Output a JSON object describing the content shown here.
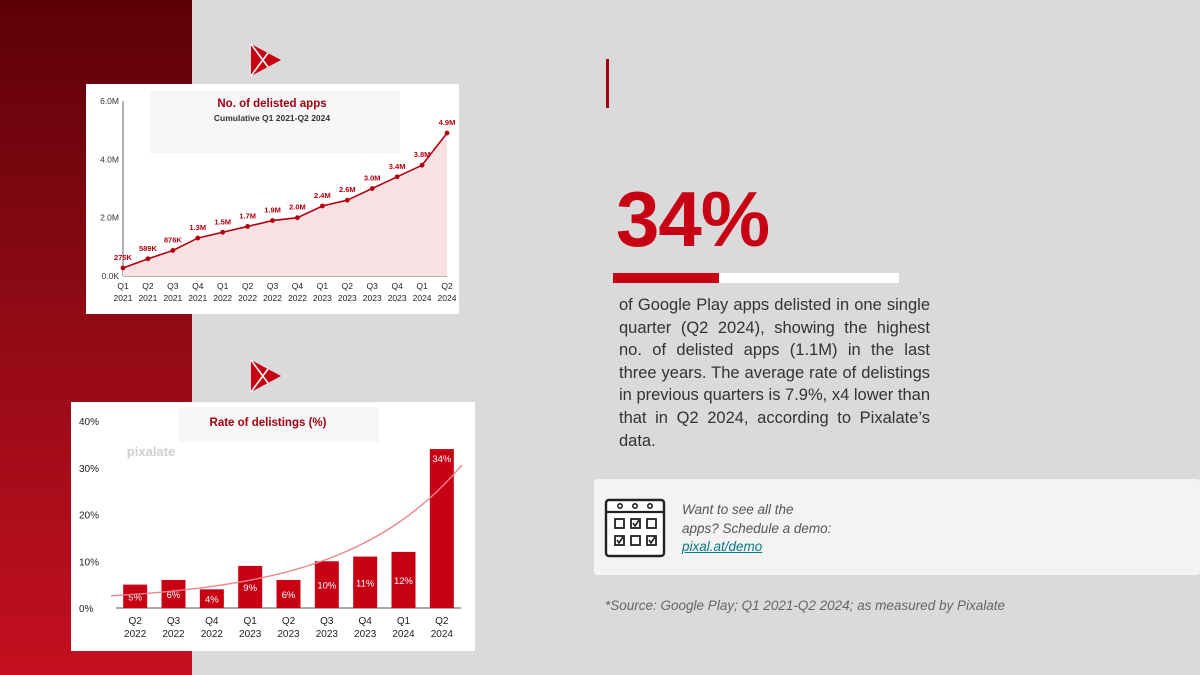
{
  "colors": {
    "brand_red": "#c80014",
    "dark_red": "#9e0010",
    "area_fill": "#f8e1e2",
    "trend": "#e9868c"
  },
  "logo_text": "pixalate",
  "cumulative_chart": {
    "type": "area",
    "title": "No. of delisted apps",
    "subtitle": "Cumulative Q1 2021-Q2 2024",
    "ylim": [
      0,
      6.0
    ],
    "y_ticks": [
      {
        "value": 0,
        "label": "0.0K"
      },
      {
        "value": 2,
        "label": "2.0M"
      },
      {
        "value": 4,
        "label": "4.0M"
      },
      {
        "value": 6,
        "label": "6.0M"
      }
    ],
    "x_quarters": [
      "Q1",
      "Q2",
      "Q3",
      "Q4",
      "Q1",
      "Q2",
      "Q3",
      "Q4",
      "Q1",
      "Q2",
      "Q3",
      "Q4",
      "Q1",
      "Q2"
    ],
    "x_years": [
      "2021",
      "2021",
      "2021",
      "2021",
      "2022",
      "2022",
      "2022",
      "2022",
      "2023",
      "2023",
      "2023",
      "2023",
      "2024",
      "2024"
    ],
    "values": [
      0.275,
      0.589,
      0.876,
      1.3,
      1.5,
      1.7,
      1.9,
      2.0,
      2.4,
      2.6,
      3.0,
      3.4,
      3.8,
      4.9
    ],
    "data_labels": [
      "275K",
      "589K",
      "876K",
      "1.3M",
      "1.5M",
      "1.7M",
      "1.9M",
      "2.0M",
      "2.4M",
      "2.6M",
      "3.0M",
      "3.4M",
      "3.8M",
      "4.9M"
    ]
  },
  "rate_chart": {
    "type": "bar",
    "title": "Rate of delistings (%)",
    "ylim": [
      0,
      40
    ],
    "y_ticks": [
      {
        "value": 0,
        "label": "0%"
      },
      {
        "value": 10,
        "label": "10%"
      },
      {
        "value": 20,
        "label": "20%"
      },
      {
        "value": 30,
        "label": "30%"
      },
      {
        "value": 40,
        "label": "40%"
      }
    ],
    "x_quarters": [
      "Q2",
      "Q3",
      "Q4",
      "Q1",
      "Q2",
      "Q3",
      "Q4",
      "Q1",
      "Q2"
    ],
    "x_years": [
      "2022",
      "2022",
      "2022",
      "2023",
      "2023",
      "2023",
      "2023",
      "2024",
      "2024"
    ],
    "values": [
      5,
      6,
      4,
      9,
      6,
      10,
      11,
      12,
      34
    ],
    "data_labels": [
      "5%",
      "6%",
      "4%",
      "9%",
      "6%",
      "10%",
      "11%",
      "12%",
      "34%"
    ]
  },
  "headline": {
    "value": "34%",
    "bar_fill_fraction": 0.37,
    "description": "of Google Play apps delisted in one single quarter (Q2 2024), showing the highest no. of delisted apps (1.1M) in the last three years. The average rate of delistings in previous quarters is 7.9%, x4 lower than that in Q2 2024, according to Pixalate’s data."
  },
  "demo": {
    "text": "Want to see all the apps? Schedule a demo: ",
    "link": "pixal.at/demo"
  },
  "source": "*Source: Google Play; Q1 2021-Q2 2024; as measured by Pixalate"
}
